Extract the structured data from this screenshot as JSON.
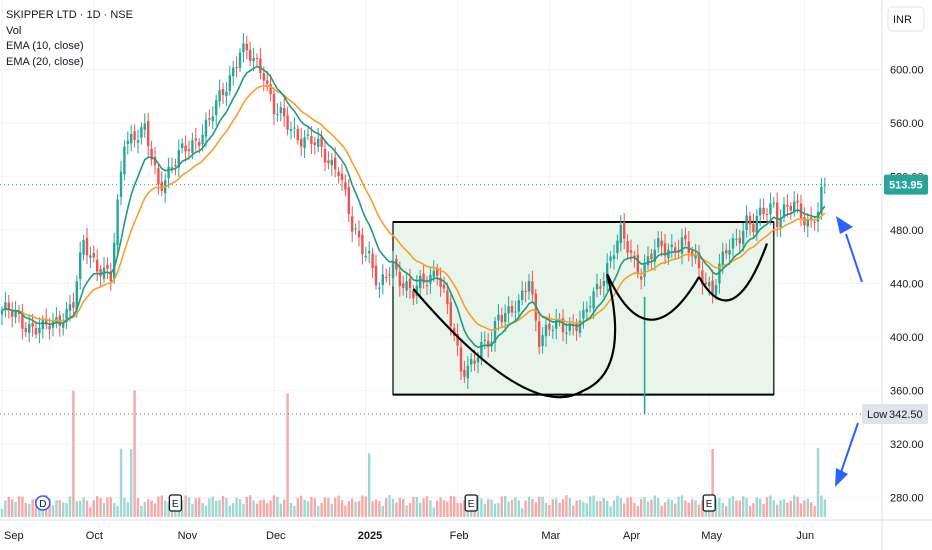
{
  "header": {
    "title": "SKIPPER LTD · 1D · NSE",
    "vol_label": "Vol",
    "ema10_label": "EMA (10, close)",
    "ema20_label": "EMA (20, close)",
    "currency": "INR"
  },
  "colors": {
    "up": "#26a69a",
    "down": "#ef5350",
    "vol_up": "#9ed8d2",
    "vol_down": "#f7a9a7",
    "ema10": "#1f9b80",
    "ema20": "#f5a028",
    "pattern_fill": "#e9f5ea",
    "arrow": "#2962ff"
  },
  "chart_data": {
    "type": "candlestick",
    "title": "SKIPPER LTD · 1D · NSE",
    "y_ticks": [
      "600.00",
      "560.00",
      "520.00",
      "480.00",
      "440.00",
      "400.00",
      "360.00",
      "320.00",
      "280.00"
    ],
    "y_tick_values": [
      600,
      560,
      520,
      480,
      440,
      400,
      360,
      320,
      280
    ],
    "ylim": [
      267,
      652
    ],
    "x_labels": [
      "Sep",
      "Oct",
      "Nov",
      "Dec",
      "2025",
      "Feb",
      "Mar",
      "Apr",
      "May",
      "Jun"
    ],
    "last_price": "513.95",
    "low_label": "Low",
    "low_value": "342.50",
    "event_markers": [
      {
        "letter": "D",
        "month": "Sep"
      },
      {
        "letter": "E",
        "month": "Nov"
      },
      {
        "letter": "E",
        "month": "Feb"
      },
      {
        "letter": "E",
        "month": "May"
      }
    ],
    "consolidation_zone": {
      "top": 486,
      "bottom": 357
    },
    "anchors": [
      [
        0,
        420
      ],
      [
        12,
        404
      ],
      [
        21,
        424
      ],
      [
        24,
        470
      ],
      [
        28,
        455
      ],
      [
        32,
        442
      ],
      [
        36,
        550
      ],
      [
        42,
        552
      ],
      [
        46,
        515
      ],
      [
        54,
        540
      ],
      [
        61,
        560
      ],
      [
        70,
        614
      ],
      [
        77,
        600
      ],
      [
        80,
        570
      ],
      [
        83,
        560
      ],
      [
        91,
        545
      ],
      [
        99,
        527
      ],
      [
        103,
        479
      ],
      [
        108,
        463
      ],
      [
        111,
        433
      ],
      [
        115,
        454
      ],
      [
        121,
        431
      ],
      [
        128,
        453
      ],
      [
        135,
        376
      ],
      [
        144,
        396
      ],
      [
        146,
        420
      ],
      [
        152,
        420
      ],
      [
        155,
        445
      ],
      [
        158,
        401
      ],
      [
        164,
        408
      ],
      [
        171,
        412
      ],
      [
        177,
        449
      ],
      [
        182,
        475
      ],
      [
        188,
        450
      ],
      [
        193,
        466
      ],
      [
        200,
        470
      ],
      [
        204,
        456
      ],
      [
        209,
        435
      ],
      [
        213,
        463
      ],
      [
        219,
        487
      ],
      [
        221,
        480
      ],
      [
        224,
        494
      ],
      [
        227,
        502
      ],
      [
        228,
        490
      ],
      [
        233,
        497
      ],
      [
        236,
        491
      ],
      [
        238,
        487
      ],
      [
        240,
        494
      ],
      [
        242,
        514
      ]
    ]
  }
}
